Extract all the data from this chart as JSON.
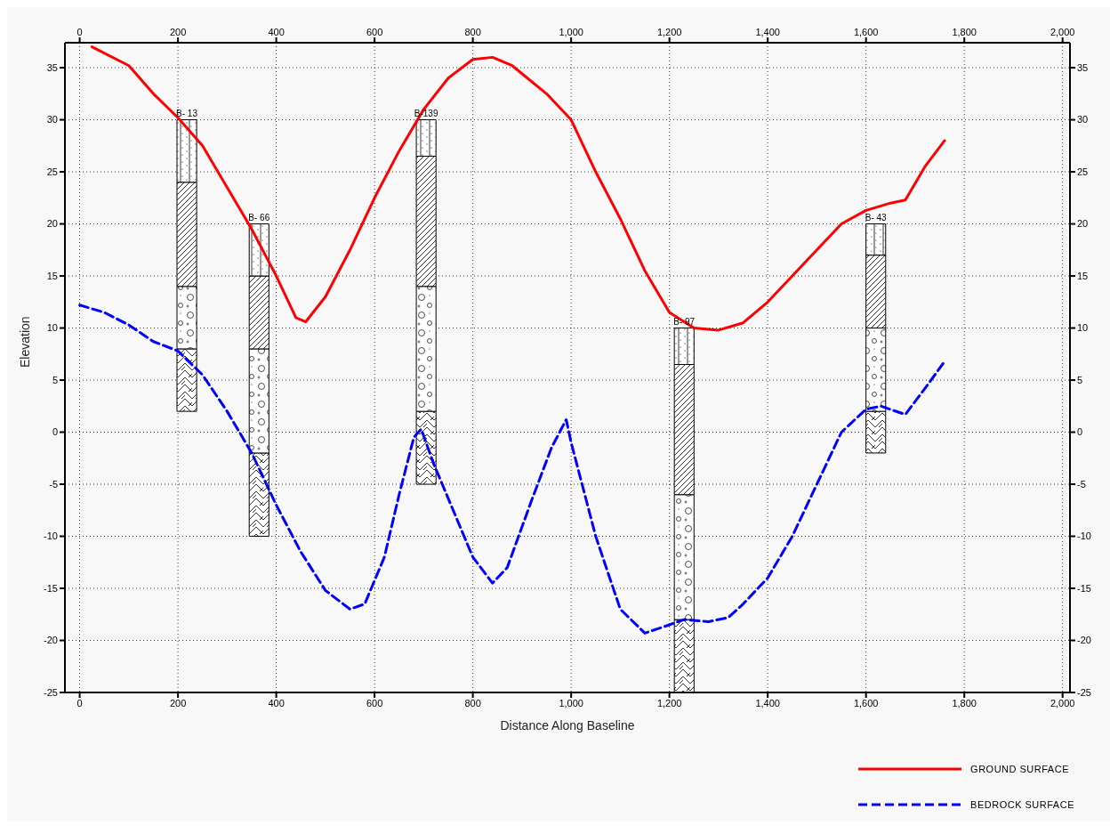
{
  "chart_data": {
    "type": "line",
    "xlabel": "Distance Along Baseline",
    "ylabel": "Elevation",
    "xlim": [
      -30,
      2015
    ],
    "ylim": [
      -25,
      37.4
    ],
    "xticks": [
      0,
      200,
      400,
      600,
      800,
      {
        "value": 1000,
        "label": "1,000"
      },
      {
        "value": 1200,
        "label": "1,200"
      },
      {
        "value": 1400,
        "label": "1,400"
      },
      {
        "value": 1600,
        "label": "1,600"
      },
      {
        "value": 1800,
        "label": "1,800"
      },
      {
        "value": 2000,
        "label": "2,000"
      }
    ],
    "x2lim": [
      -30,
      2015
    ],
    "x2ticks": [
      0,
      200,
      400,
      600,
      800,
      {
        "value": 1000,
        "label": "1,000"
      },
      {
        "value": 1200,
        "label": "1,200"
      },
      {
        "value": 1400,
        "label": "1,400"
      },
      {
        "value": 1600,
        "label": "1,600"
      },
      {
        "value": 1800,
        "label": "1,800"
      },
      {
        "value": 2000,
        "label": "2,000"
      }
    ],
    "yticks": [
      -25,
      -20,
      -15,
      -10,
      -5,
      0,
      5,
      10,
      15,
      20,
      25,
      30,
      35
    ],
    "y2lim": [
      -25,
      37.4
    ],
    "y2ticks": [
      -25,
      -20,
      -15,
      -10,
      -5,
      0,
      5,
      10,
      15,
      20,
      25,
      30,
      35
    ],
    "grid": true,
    "legend": "bottom right",
    "marker": "none",
    "series": [
      {
        "name": "GROUND SURFACE",
        "color": "#ff0000",
        "line_style": "solid",
        "x": [
          25,
          100,
          150,
          200,
          250,
          300,
          350,
          400,
          440,
          460,
          500,
          550,
          600,
          650,
          700,
          750,
          800,
          840,
          880,
          950,
          1000,
          1050,
          1100,
          1150,
          1200,
          1250,
          1300,
          1350,
          1400,
          1450,
          1500,
          1550,
          1600,
          1650,
          1680,
          1720,
          1760
        ],
        "values": [
          37,
          35.2,
          32.5,
          30.2,
          27.5,
          23.5,
          19.5,
          15,
          11,
          10.6,
          13,
          17.5,
          22.5,
          27,
          31,
          34,
          35.8,
          36,
          35.2,
          32.5,
          30,
          25,
          20.5,
          15.5,
          11.5,
          10,
          9.8,
          10.5,
          12.5,
          15,
          17.5,
          20,
          21.3,
          22,
          22.3,
          25.5,
          28
        ]
      },
      {
        "name": "BEDROCK SURFACE",
        "color": "#0000ff",
        "line_style": "dashed",
        "x": [
          0,
          50,
          100,
          150,
          200,
          250,
          300,
          350,
          400,
          450,
          500,
          550,
          580,
          620,
          650,
          680,
          695,
          720,
          760,
          800,
          840,
          870,
          920,
          960,
          990,
          1000,
          1050,
          1100,
          1150,
          1200,
          1230,
          1280,
          1320,
          1350,
          1400,
          1450,
          1500,
          1550,
          1600,
          1630,
          1680,
          1720,
          1760
        ],
        "values": [
          12.2,
          11.5,
          10.3,
          8.7,
          7.8,
          5.5,
          2,
          -2,
          -7,
          -11.5,
          -15.2,
          -17,
          -16.5,
          -12,
          -6,
          -0.5,
          0.3,
          -3,
          -7.5,
          -12,
          -14.5,
          -13,
          -6.5,
          -1.5,
          1.2,
          -1,
          -10,
          -17,
          -19.3,
          -18.5,
          -18,
          -18.2,
          -17.8,
          -16.5,
          -14,
          -10,
          -5,
          0,
          2.2,
          2.5,
          1.7,
          4.2,
          6.8
        ]
      },
      {
        "type": "bar",
        "x": [
          218,
          365,
          705,
          1230,
          1620
        ],
        "base": [
          2,
          -10,
          -5,
          -25,
          -2
        ],
        "values": [
          6,
          8,
          7,
          7,
          4
        ]
      },
      {
        "type": "bar",
        "x": [
          218,
          365,
          705,
          1230,
          1620
        ],
        "base": [
          8,
          -2,
          2,
          -18,
          2
        ],
        "values": [
          6,
          10,
          12,
          12,
          8
        ]
      },
      {
        "type": "bar",
        "x": [
          218,
          365,
          705,
          1230,
          1620
        ],
        "base": [
          14,
          8,
          14,
          -6,
          10
        ],
        "values": [
          10,
          7,
          12.5,
          12.5,
          7
        ]
      },
      {
        "type": "bar",
        "x": [
          218,
          365,
          705,
          1230,
          1620
        ],
        "base": [
          24,
          15,
          26.5,
          6.5,
          17
        ],
        "values": [
          6,
          5,
          3.5,
          3.5,
          3
        ]
      }
    ],
    "annotations": [
      "B- 13",
      "B- 66",
      "B-139",
      "B- 97",
      "B- 43"
    ]
  }
}
